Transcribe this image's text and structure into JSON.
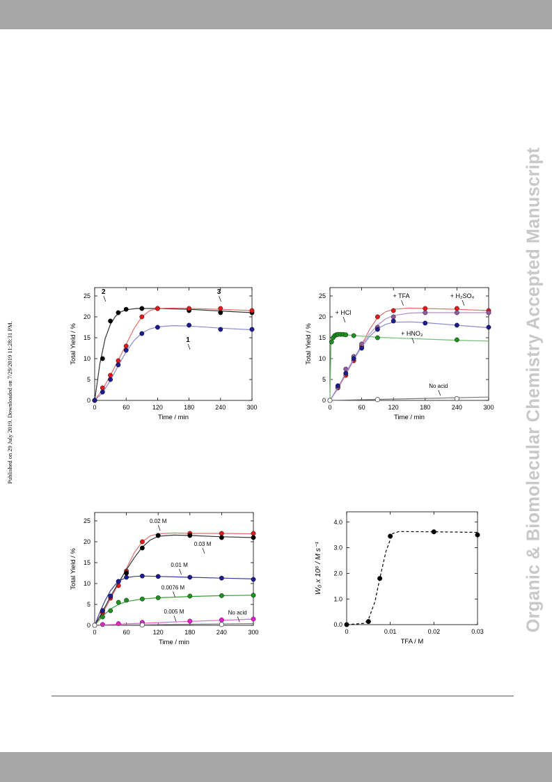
{
  "page": {
    "published_note": "Published on 29 July 2019. Downloaded on 7/29/2019 11:28:31 PM.",
    "journal_watermark": "Organic & Biomolecular Chemistry Accepted Manuscript"
  },
  "chart_data": [
    {
      "type": "line",
      "xlabel": "Time / min",
      "ylabel": "Total Yield / %",
      "xlim": [
        0,
        300
      ],
      "ylim": [
        0,
        27
      ],
      "xticks": [
        0,
        60,
        120,
        180,
        240,
        300
      ],
      "yticks": [
        0,
        5,
        10,
        15,
        20,
        25
      ],
      "series": [
        {
          "name": "2",
          "color": "#000000",
          "line_color": "#333333",
          "x": [
            0,
            15,
            30,
            45,
            60,
            90,
            120,
            180,
            240,
            300
          ],
          "y": [
            0,
            10,
            19,
            21,
            21.8,
            22,
            22,
            21.5,
            21,
            21
          ],
          "fit_x": [
            0,
            10,
            20,
            30,
            40,
            50,
            60,
            80,
            100,
            120,
            150,
            180,
            240,
            300
          ],
          "fit_y": [
            0,
            8.8,
            14.8,
            18.2,
            20.2,
            21.2,
            21.7,
            22,
            22,
            22,
            21.9,
            21.8,
            21.4,
            21
          ]
        },
        {
          "name": "3",
          "color": "#e11b1b",
          "line_color": "#e46c6c",
          "x": [
            0,
            15,
            30,
            45,
            60,
            90,
            120,
            180,
            240,
            300
          ],
          "y": [
            0,
            3,
            6,
            9.5,
            13,
            20,
            22,
            22,
            22,
            21.5
          ],
          "fit_x": [
            0,
            15,
            30,
            45,
            60,
            75,
            90,
            105,
            120,
            150,
            180,
            240,
            300
          ],
          "fit_y": [
            0,
            2.6,
            6,
            9.6,
            13.4,
            17.2,
            20,
            21.5,
            22,
            22.1,
            22,
            21.8,
            21.5
          ]
        },
        {
          "name": "1",
          "color": "#1c1c8c",
          "line_color": "#8a8ad0",
          "x": [
            0,
            15,
            30,
            45,
            60,
            90,
            120,
            180,
            240,
            300
          ],
          "y": [
            0,
            2,
            5,
            8.5,
            12,
            16,
            17.5,
            18,
            17,
            17
          ],
          "fit_x": [
            0,
            15,
            30,
            45,
            60,
            75,
            90,
            105,
            120,
            150,
            180,
            240,
            300
          ],
          "fit_y": [
            0,
            1.8,
            4.8,
            8.3,
            11.6,
            14.3,
            16.1,
            17.1,
            17.6,
            17.9,
            17.8,
            17.3,
            16.9
          ]
        }
      ],
      "annotations": [
        {
          "text": "2",
          "x": 17,
          "y": 25.5
        },
        {
          "text": "3",
          "x": 237,
          "y": 25.5
        },
        {
          "text": "1",
          "x": 178,
          "y": 14
        }
      ]
    },
    {
      "type": "line",
      "xlabel": "Time / min",
      "ylabel": "Total Yield / %",
      "xlim": [
        0,
        300
      ],
      "ylim": [
        0,
        27
      ],
      "xticks": [
        0,
        60,
        120,
        180,
        240,
        300
      ],
      "yticks": [
        0,
        5,
        10,
        15,
        20,
        25
      ],
      "series": [
        {
          "name": "+ TFA",
          "color": "#e11b1b",
          "line_color": "#e46c6c",
          "x": [
            0,
            15,
            30,
            45,
            60,
            90,
            120,
            180,
            240,
            300
          ],
          "y": [
            0,
            3,
            6,
            9.5,
            13,
            20,
            21.5,
            22,
            22,
            21.5
          ],
          "fit_x": [
            0,
            15,
            30,
            45,
            60,
            75,
            90,
            105,
            120,
            150,
            180,
            240,
            300
          ],
          "fit_y": [
            0,
            2.8,
            6.2,
            9.7,
            13.3,
            17,
            19.8,
            21.2,
            21.8,
            22.1,
            22,
            21.8,
            21.5
          ]
        },
        {
          "name": "+ H₂SO₄",
          "color": "#8e5a9e",
          "line_color": "#b48cc4",
          "x": [
            0,
            15,
            30,
            45,
            60,
            90,
            120,
            180,
            240,
            300
          ],
          "y": [
            0,
            3.2,
            7.5,
            10.5,
            13.5,
            17.5,
            20,
            21,
            21,
            21
          ],
          "fit_x": [
            0,
            15,
            30,
            45,
            60,
            75,
            90,
            105,
            120,
            150,
            180,
            240,
            300
          ],
          "fit_y": [
            0,
            3,
            6.6,
            10,
            13.2,
            15.9,
            18,
            19.5,
            20.3,
            20.9,
            21,
            21,
            21
          ]
        },
        {
          "name": "+ HNO₃",
          "color": "#1c1c8c",
          "line_color": "#8a8ad0",
          "x": [
            0,
            15,
            30,
            45,
            60,
            90,
            120,
            180,
            240,
            300
          ],
          "y": [
            0,
            3.5,
            6.5,
            10,
            12.5,
            17,
            19,
            18.5,
            18,
            17.5
          ],
          "fit_x": [
            0,
            15,
            30,
            45,
            60,
            75,
            90,
            105,
            120,
            150,
            180,
            240,
            300
          ],
          "fit_y": [
            0,
            3.1,
            6.5,
            9.8,
            12.8,
            15.3,
            17.1,
            18.2,
            18.7,
            18.8,
            18.6,
            18,
            17.4
          ]
        },
        {
          "name": "+ HCl",
          "color": "#1f8f1f",
          "line_color": "#6fbf6f",
          "x": [
            0,
            3,
            6,
            9,
            12,
            15,
            20,
            25,
            30,
            45,
            90,
            240
          ],
          "y": [
            0,
            14,
            15,
            15.5,
            15.7,
            15.8,
            15.8,
            15.8,
            15.7,
            15.5,
            15,
            14.5
          ],
          "fit_x": [
            0,
            2,
            4,
            6,
            10,
            20,
            40,
            90,
            150,
            240,
            300
          ],
          "fit_y": [
            0,
            13.5,
            15,
            15.4,
            15.7,
            15.8,
            15.6,
            15.1,
            14.8,
            14.4,
            14.2
          ]
        },
        {
          "name": "No acid",
          "color": "#ffffff",
          "line_color": "#777777",
          "hollow": true,
          "x": [
            0,
            90,
            240
          ],
          "y": [
            0,
            0.2,
            0.4
          ],
          "fit_x": [
            0,
            300
          ],
          "fit_y": [
            0,
            0.8
          ]
        }
      ],
      "annotations": [
        {
          "text": "+ TFA",
          "x": 135,
          "y": 24.5
        },
        {
          "text": "+ H₂SO₄",
          "x": 250,
          "y": 24.5
        },
        {
          "text": "+ HCl",
          "x": 25,
          "y": 20.5
        },
        {
          "text": "+ HNO₃",
          "x": 155,
          "y": 15.5
        },
        {
          "text": "No acid",
          "x": 205,
          "y": 3
        }
      ]
    },
    {
      "type": "line",
      "xlabel": "Time / min",
      "ylabel": "Total Yield / %",
      "xlim": [
        0,
        300
      ],
      "ylim": [
        0,
        27
      ],
      "xticks": [
        0,
        60,
        120,
        180,
        240,
        300
      ],
      "yticks": [
        0,
        5,
        10,
        15,
        20,
        25
      ],
      "series": [
        {
          "name": "0.02 M",
          "color": "#e11b1b",
          "line_color": "#e46c6c",
          "x": [
            0,
            15,
            30,
            45,
            60,
            90,
            120,
            180,
            240,
            300
          ],
          "y": [
            0,
            3,
            6.5,
            9.5,
            13,
            20,
            21.5,
            22,
            22,
            22
          ],
          "fit_x": [
            0,
            15,
            30,
            45,
            60,
            75,
            90,
            105,
            120,
            150,
            180,
            240,
            300
          ],
          "fit_y": [
            0,
            2.9,
            6.4,
            9.9,
            13.6,
            17.4,
            20,
            21.4,
            21.9,
            22.1,
            22,
            22,
            21.9
          ]
        },
        {
          "name": "0.03 M",
          "color": "#000000",
          "line_color": "#333333",
          "x": [
            0,
            15,
            30,
            45,
            60,
            90,
            120,
            180,
            240,
            300
          ],
          "y": [
            0,
            3.5,
            7,
            10.5,
            12.5,
            18.5,
            21.5,
            21.5,
            21,
            21
          ],
          "fit_x": [
            0,
            15,
            30,
            45,
            60,
            75,
            90,
            105,
            120,
            150,
            180,
            240,
            300
          ],
          "fit_y": [
            0,
            3.3,
            6.9,
            10.2,
            13.3,
            16.2,
            18.7,
            20.4,
            21.3,
            21.6,
            21.5,
            21.2,
            21
          ]
        },
        {
          "name": "0.01 M",
          "color": "#1c1c8c",
          "line_color": "#3a3a9a",
          "x": [
            0,
            15,
            30,
            45,
            60,
            90,
            120,
            180,
            240,
            300
          ],
          "y": [
            0,
            3.5,
            7,
            10.5,
            11.5,
            11.8,
            11.7,
            11.5,
            11.3,
            11
          ],
          "fit_x": [
            0,
            10,
            20,
            30,
            40,
            50,
            60,
            75,
            90,
            120,
            180,
            240,
            300
          ],
          "fit_y": [
            0,
            3.2,
            6,
            8.3,
            9.9,
            10.9,
            11.4,
            11.7,
            11.8,
            11.7,
            11.5,
            11.3,
            11.1
          ]
        },
        {
          "name": "0.0076 M",
          "color": "#1f8f1f",
          "line_color": "#2f9f2f",
          "x": [
            0,
            15,
            30,
            45,
            60,
            90,
            120,
            180,
            240,
            300
          ],
          "y": [
            0,
            2,
            3.5,
            5.5,
            6,
            6.3,
            6.6,
            7,
            7.1,
            7.2
          ],
          "fit_x": [
            0,
            15,
            30,
            45,
            60,
            90,
            120,
            180,
            240,
            300
          ],
          "fit_y": [
            0,
            2.2,
            3.9,
            5,
            5.7,
            6.3,
            6.6,
            6.9,
            7.1,
            7.2
          ]
        },
        {
          "name": "0.005 M",
          "color": "#e020d0",
          "line_color": "#e060d8",
          "x": [
            0,
            15,
            45,
            90,
            180,
            240,
            300
          ],
          "y": [
            0,
            0.2,
            0.4,
            0.7,
            1,
            1.3,
            1.5
          ],
          "fit_x": [
            0,
            60,
            120,
            180,
            240,
            300
          ],
          "fit_y": [
            0,
            0.35,
            0.65,
            0.95,
            1.2,
            1.5
          ]
        },
        {
          "name": "No acid",
          "color": "#ffffff",
          "line_color": "#777777",
          "hollow": true,
          "x": [
            0,
            90,
            240
          ],
          "y": [
            0,
            0.1,
            0.2
          ],
          "fit_x": [
            0,
            300
          ],
          "fit_y": [
            0,
            0.4
          ]
        }
      ],
      "annotations": [
        {
          "text": "0.02 M",
          "x": 120,
          "y": 24.5
        },
        {
          "text": "0.03 M",
          "x": 204,
          "y": 19
        },
        {
          "text": "0.01 M",
          "x": 160,
          "y": 14
        },
        {
          "text": "0.0076 M",
          "x": 148,
          "y": 8.6
        },
        {
          "text": "0.005 M",
          "x": 150,
          "y": 2.8
        },
        {
          "text": "No acid",
          "x": 270,
          "y": 2.6
        }
      ]
    },
    {
      "type": "scatter",
      "xlabel": "TFA / M",
      "ylabel": "W₀  x  10⁶ / M s⁻¹",
      "xlim": [
        0,
        0.03
      ],
      "ylim": [
        0,
        4.4
      ],
      "xticks": [
        0,
        0.01,
        0.02,
        0.03
      ],
      "xtick_labels": [
        "0",
        "0.01",
        "0.02",
        "0.03"
      ],
      "yticks": [
        0,
        1,
        2,
        3,
        4
      ],
      "ytick_labels": [
        "0.0",
        "1.0",
        "2.0",
        "3.0",
        "4.0"
      ],
      "series": [
        {
          "name": "",
          "color": "#000000",
          "line_color": "#000000",
          "dashed": true,
          "x": [
            0,
            0.005,
            0.0076,
            0.01,
            0.02,
            0.03
          ],
          "y": [
            0,
            0.12,
            1.8,
            3.45,
            3.62,
            3.5
          ],
          "fit_x": [
            0,
            0.004,
            0.005,
            0.0065,
            0.0076,
            0.009,
            0.0105,
            0.012,
            0.02,
            0.03
          ],
          "fit_y": [
            0,
            0.05,
            0.2,
            0.9,
            1.8,
            2.85,
            3.55,
            3.63,
            3.62,
            3.6
          ]
        }
      ]
    }
  ]
}
